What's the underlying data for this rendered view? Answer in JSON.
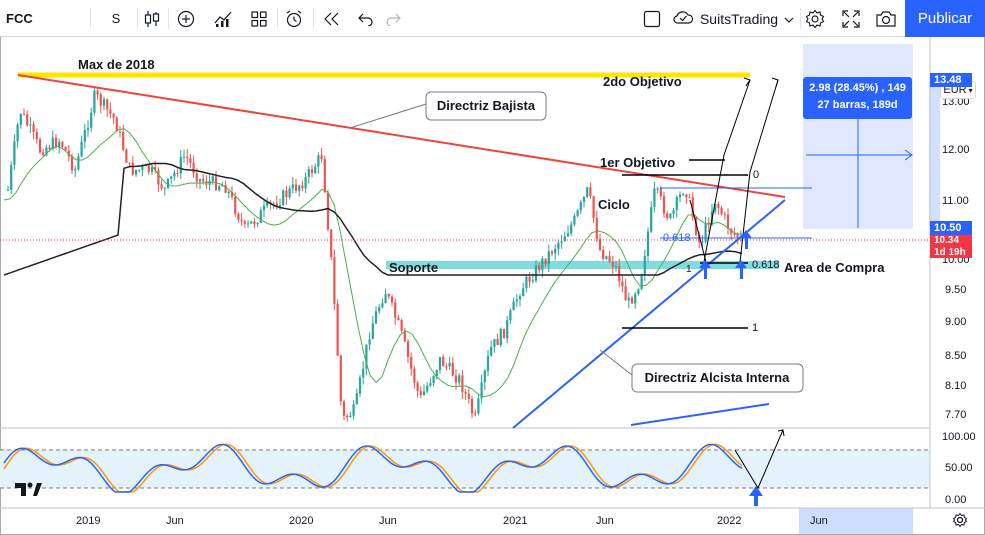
{
  "toolbar": {
    "symbol": "FCC",
    "interval": "S",
    "layout_name": "SuitsTrading",
    "publish_label": "Publicar",
    "icons": [
      "candles-icon",
      "add-compare-icon",
      "indicators-icon",
      "templates-icon",
      "alert-icon",
      "replay-icon",
      "undo-icon",
      "redo-icon",
      "layout-square-icon",
      "cloud-icon",
      "chevron-down-icon",
      "settings-icon",
      "fullscreen-icon",
      "camera-icon"
    ]
  },
  "price_axis": {
    "currency": "EUR",
    "labels": [
      "13.00",
      "12.00",
      "11.00",
      "10.00",
      "9.50",
      "9.00",
      "8.50",
      "8.10",
      "7.70"
    ],
    "badges": [
      {
        "text": "13.48",
        "color": "#2962ff"
      },
      {
        "text": "10.50",
        "color": "#2962ff"
      },
      {
        "text": "10.34",
        "color": "#f23645"
      },
      {
        "text": "1d 19h",
        "color": "#f23645"
      }
    ]
  },
  "oscillator_axis": {
    "labels": [
      "100.00",
      "50.00",
      "0.00"
    ]
  },
  "time_axis": {
    "labels": [
      "2019",
      "Jun",
      "2020",
      "Jun",
      "2021",
      "Jun",
      "2022",
      "Jun"
    ]
  },
  "measure_tooltip": {
    "line1": "2.98 (28.45%) , 149",
    "line2": "27 barras, 189d"
  },
  "annotations": {
    "max_2018": "Max de 2018",
    "second_target": "2do Objetivo",
    "bearish_trendline": "Directriz Bajista",
    "first_target": "1er Objetivo",
    "cycle": "Ciclo",
    "support": "Soporte",
    "buy_area": "Area de Compra",
    "bullish_trendline": "Directriz Alcista Interna",
    "fib_0": "0",
    "fib_0618_top": "0.618",
    "fib_1_small": "1",
    "fib_0618": "0.618",
    "fib_1": "1"
  },
  "colors": {
    "up": "#26a69a",
    "down": "#ef5350",
    "bearish_line": "#f0433a",
    "bullish_line": "#2962ff",
    "max_line": "#ffe500",
    "support_zone": "#7fdde0",
    "sma_green": "#4caf50",
    "sma_black": "#222222",
    "stoch_blue": "#2962ff",
    "stoch_orange": "#ff9800"
  }
}
